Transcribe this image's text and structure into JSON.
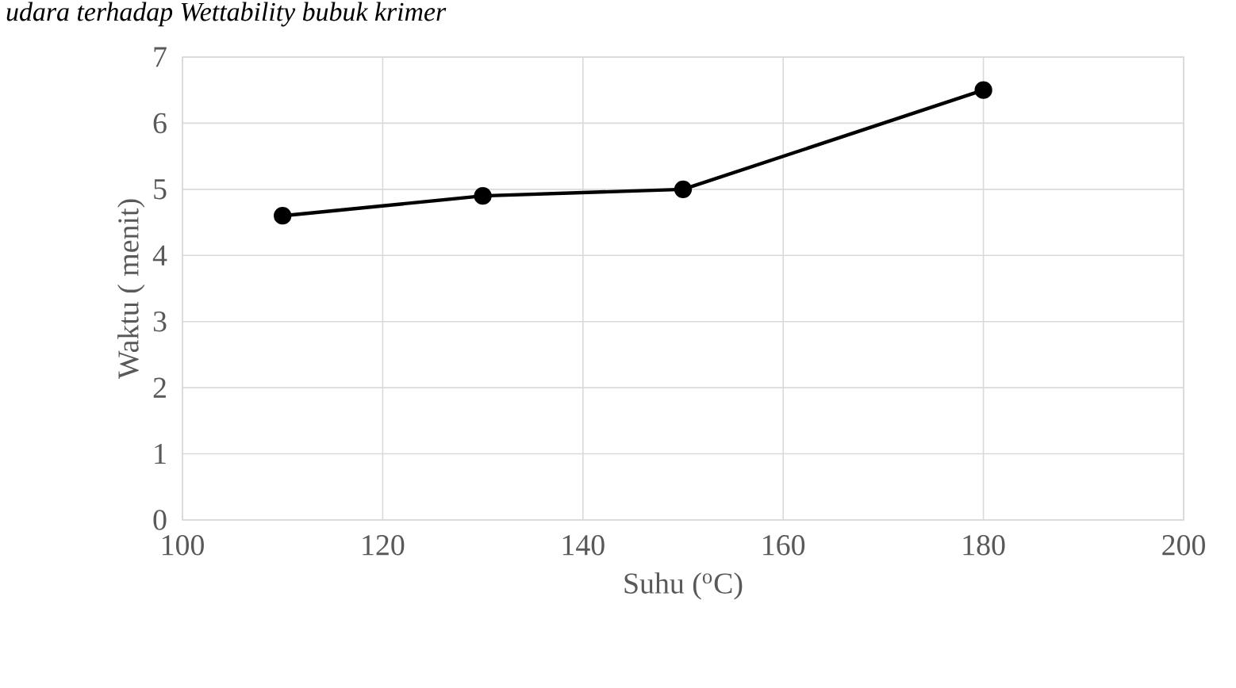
{
  "chart_data": {
    "type": "line",
    "title": "*udara terhadap Wettability bubuk krimer*",
    "xlabel": "Suhu ($^{o}$C)",
    "ylabel": "Waktu ( menit)",
    "x": [
      110,
      130,
      150,
      180
    ],
    "series": [
      {
        "color": "#000000",
        "values": [
          4.6,
          4.9,
          5.0,
          6.5
        ]
      }
    ],
    "xlim": [
      100,
      200
    ],
    "xticks": [
      100,
      120,
      140,
      160,
      180,
      200
    ],
    "ylim": [
      0,
      7
    ],
    "yticks": [
      0,
      1,
      2,
      3,
      4,
      5,
      6,
      7
    ],
    "grid": true,
    "marker": "circle",
    "line_style": "solid"
  }
}
